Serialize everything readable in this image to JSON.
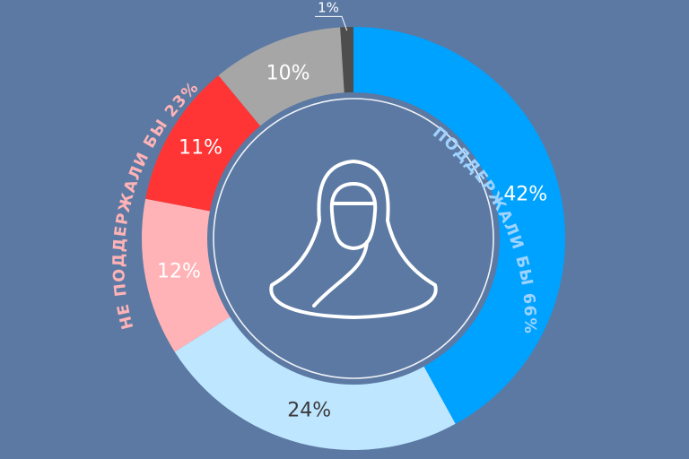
{
  "chart_data": {
    "type": "donut",
    "values": [
      42,
      24,
      12,
      11,
      10,
      1
    ],
    "labels": [
      "42%",
      "24%",
      "12%",
      "11%",
      "10%",
      "1%"
    ],
    "colors": [
      "#00a2ff",
      "#bfe6ff",
      "#ffb3b6",
      "#ff3535",
      "#a6a6a6",
      "#4d4d4d"
    ],
    "label_colors": [
      "#ffffff",
      "#3a3a3a",
      "#ffffff",
      "#ffffff",
      "#ffffff",
      "#ffffff"
    ],
    "groups": [
      {
        "label": "ПОДДЕРЖАЛИ БЫ 66%",
        "color": "#9fd3ff"
      },
      {
        "label": "НЕ ПОДДЕРЖАЛИ БЫ 23%",
        "color": "#ffb3b6"
      }
    ],
    "center_icon": "woman-in-headscarf-icon"
  }
}
